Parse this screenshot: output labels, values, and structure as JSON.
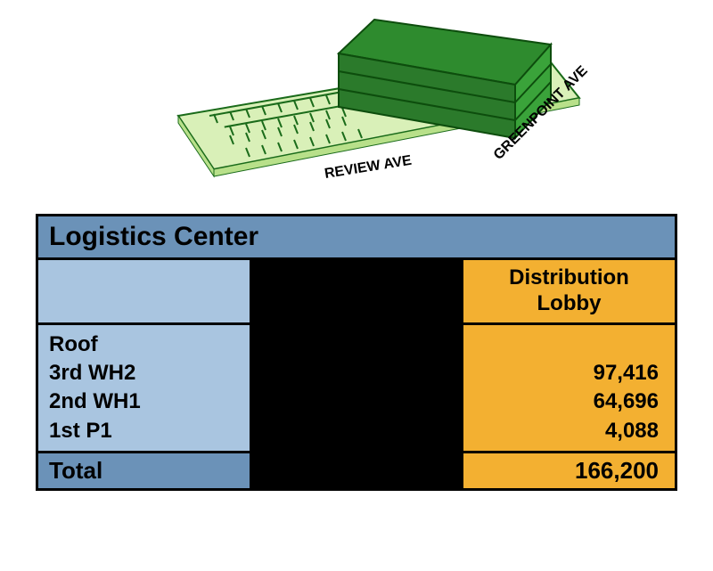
{
  "diagram": {
    "street1": "REVIEW AVE",
    "street2": "GREENPOINT AVE",
    "building_color_top": "#2e8b2e",
    "building_color_side": "#3aa33a",
    "building_color_front": "#2b7a2b",
    "building_outline": "#0d4d0d",
    "ground_light": "#d9f0b8",
    "ground_mid": "#b8e08a",
    "lot_stroke": "#1a6b1a"
  },
  "table": {
    "title": "Logistics Center",
    "header_col_label_line1": "Distribution",
    "header_col_label_line2": "Lobby",
    "floors": [
      "Roof",
      "3rd WH2",
      "2nd WH1",
      "1st P1"
    ],
    "values": [
      "",
      "97,416",
      "64,696",
      "4,088"
    ],
    "total_label": "Total",
    "total_value": "166,200",
    "colors": {
      "title_bg": "#6b92b8",
      "header_left_bg": "#a9c5e0",
      "header_right_bg": "#f3b031",
      "body_left_bg": "#a9c5e0",
      "body_right_bg": "#f3b031",
      "total_left_bg": "#6b92b8",
      "total_right_bg": "#f3b031",
      "middle_bg": "#000000",
      "border": "#000000"
    }
  }
}
